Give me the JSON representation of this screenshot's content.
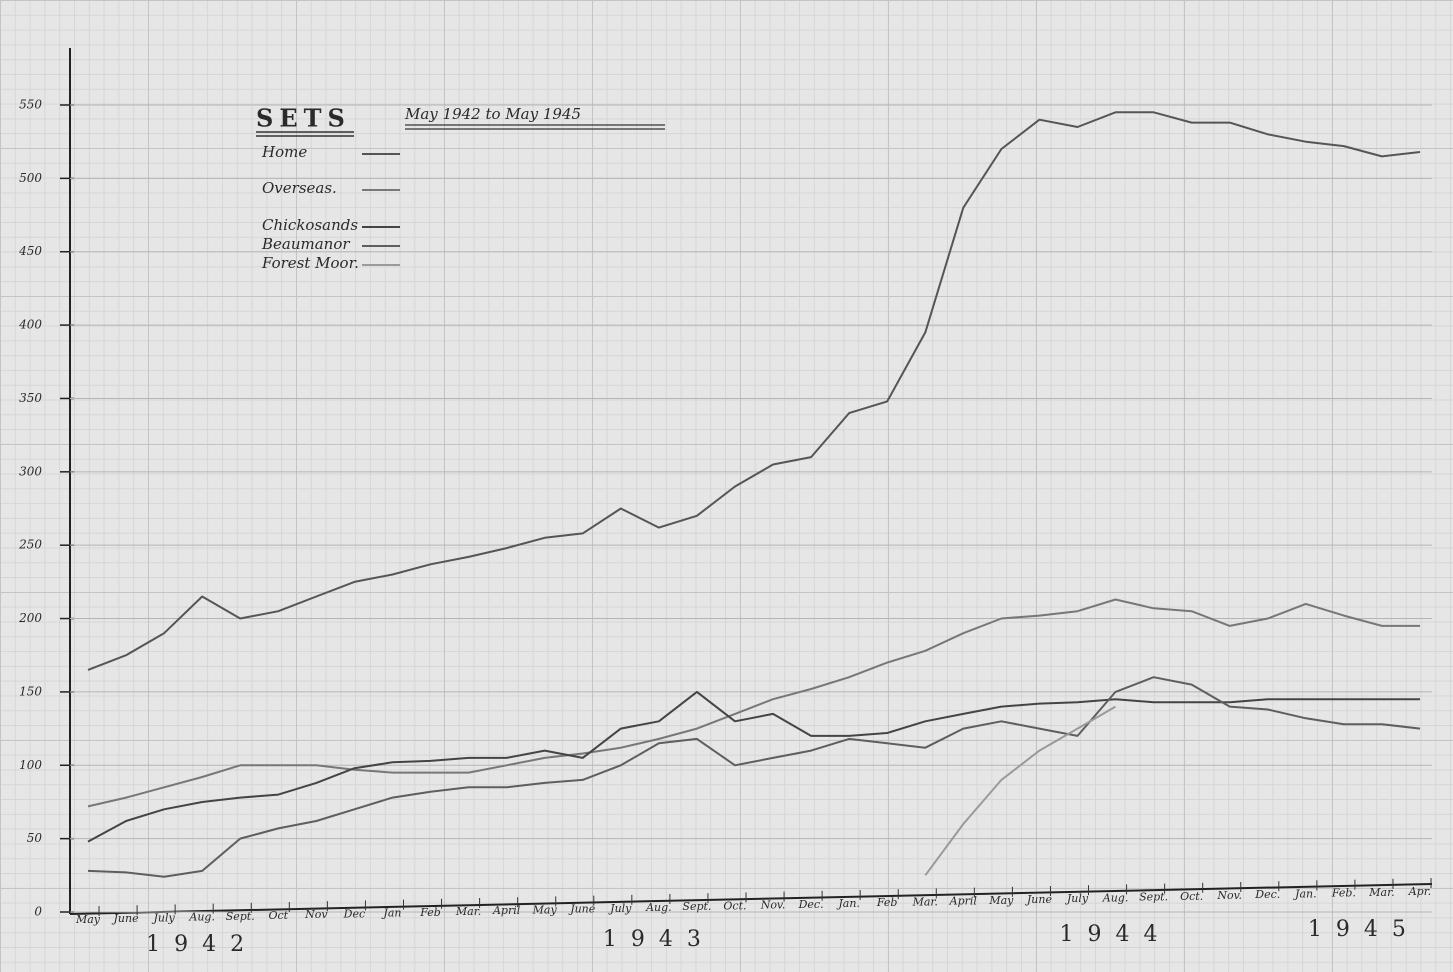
{
  "chart_data": {
    "type": "line",
    "title": "SETS",
    "subtitle": "May 1942 to May 1945",
    "categories": [
      "May",
      "June",
      "July",
      "Aug.",
      "Sept.",
      "Oct",
      "Nov",
      "Dec",
      "Jan",
      "Feb",
      "Mar.",
      "April",
      "May",
      "June",
      "July",
      "Aug.",
      "Sept.",
      "Oct.",
      "Nov.",
      "Dec.",
      "Jan.",
      "Feb",
      "Mar.",
      "April",
      "May",
      "June",
      "July",
      "Aug.",
      "Sept.",
      "Oct.",
      "Nov.",
      "Dec.",
      "Jan.",
      "Feb.",
      "Mar.",
      "Apr."
    ],
    "year_labels": [
      "1942",
      "1943",
      "1944",
      "1945"
    ],
    "series": [
      {
        "name": "Home",
        "color": "#555555",
        "values": [
          165,
          175,
          190,
          215,
          200,
          205,
          215,
          225,
          230,
          237,
          242,
          248,
          255,
          258,
          275,
          262,
          270,
          290,
          305,
          310,
          340,
          348,
          395,
          480,
          520,
          540,
          535,
          545,
          545,
          538,
          538,
          530,
          525,
          522,
          515,
          518
        ]
      },
      {
        "name": "Overseas.",
        "color": "#777777",
        "values": [
          72,
          78,
          85,
          92,
          100,
          100,
          100,
          97,
          95,
          95,
          95,
          100,
          105,
          108,
          112,
          118,
          125,
          135,
          145,
          152,
          160,
          170,
          178,
          190,
          200,
          202,
          205,
          213,
          207,
          205,
          195,
          200,
          210,
          202,
          195,
          195
        ]
      },
      {
        "name": "Chickosands",
        "color": "#444444",
        "values": [
          48,
          62,
          70,
          75,
          78,
          80,
          88,
          98,
          102,
          103,
          105,
          105,
          110,
          105,
          125,
          130,
          150,
          130,
          135,
          120,
          120,
          122,
          130,
          135,
          140,
          142,
          143,
          145,
          143,
          143,
          143,
          145,
          145,
          145,
          145,
          145
        ]
      },
      {
        "name": "Beaumanor",
        "color": "#5e5e5e",
        "values": [
          28,
          27,
          24,
          28,
          50,
          57,
          62,
          70,
          78,
          82,
          85,
          85,
          88,
          90,
          100,
          115,
          118,
          100,
          105,
          110,
          118,
          115,
          112,
          125,
          130,
          125,
          120,
          150,
          160,
          155,
          140,
          138,
          132,
          128,
          128,
          125
        ]
      },
      {
        "name": "Forest Moor.",
        "color": "#9a9a9a",
        "values": [
          null,
          null,
          null,
          null,
          null,
          null,
          null,
          null,
          null,
          null,
          null,
          null,
          null,
          null,
          null,
          null,
          null,
          null,
          null,
          null,
          null,
          null,
          25,
          60,
          90,
          110,
          125,
          140,
          null,
          null,
          null,
          null,
          null,
          null,
          null,
          null
        ]
      }
    ],
    "ylim": [
      0,
      550
    ],
    "yticks": [
      0,
      50,
      100,
      150,
      200,
      250,
      300,
      350,
      400,
      450,
      500,
      550
    ],
    "grid": true
  }
}
